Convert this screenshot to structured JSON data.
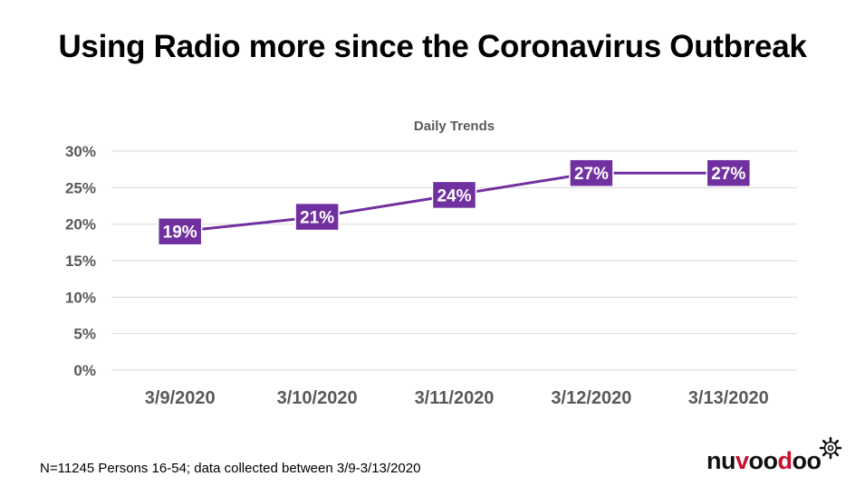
{
  "slide": {
    "title": "Using Radio more since the Coronavirus Outbreak",
    "footnote": "N=11245 Persons 16-54; data collected between 3/9-3/13/2020"
  },
  "logo": {
    "part1": "nu",
    "part2": "v",
    "part3": "oo",
    "part4": "d",
    "part5": "oo",
    "icon": "gear-icon"
  },
  "colors": {
    "series": "#7030A0",
    "grid": "#d9d9d9",
    "axis_text": "#595959"
  },
  "chart_data": {
    "type": "line",
    "title": "Daily Trends",
    "categories": [
      "3/9/2020",
      "3/10/2020",
      "3/11/2020",
      "3/12/2020",
      "3/13/2020"
    ],
    "values": [
      19,
      21,
      24,
      27,
      27
    ],
    "data_labels": [
      "19%",
      "21%",
      "24%",
      "27%",
      "27%"
    ],
    "y_ticks": [
      "0%",
      "5%",
      "10%",
      "15%",
      "20%",
      "25%",
      "30%"
    ],
    "ylim": [
      0,
      30
    ],
    "grid": true,
    "legend": "none"
  }
}
